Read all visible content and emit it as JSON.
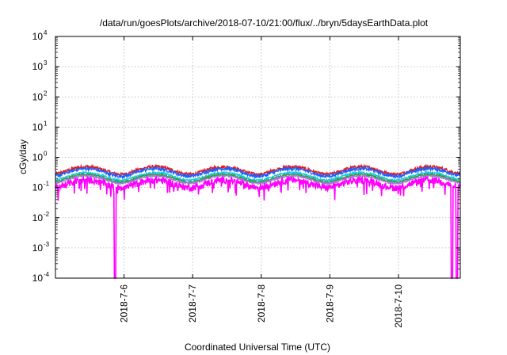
{
  "chart_data": {
    "type": "line",
    "title": "/data/run/goesPlots/archive/2018-07-10/21:00/flux/../bryn/5daysEarthData.plot",
    "xlabel": "Coordinated Universal Time (UTC)",
    "ylabel": "cGy/day",
    "yscale": "log",
    "ylim": [
      0.0001,
      10000
    ],
    "xlim_days": [
      5.0,
      10.9
    ],
    "grid": true,
    "x_ticks": [
      {
        "label": "2018-7-6",
        "day": 6
      },
      {
        "label": "2018-7-7",
        "day": 7
      },
      {
        "label": "2018-7-8",
        "day": 8
      },
      {
        "label": "2018-7-9",
        "day": 9
      },
      {
        "label": "2018-7-10",
        "day": 10
      }
    ],
    "y_ticks": [
      {
        "base": "10",
        "exp": "-4",
        "value": 0.0001
      },
      {
        "base": "10",
        "exp": "-3",
        "value": 0.001
      },
      {
        "base": "10",
        "exp": "-2",
        "value": 0.01
      },
      {
        "base": "10",
        "exp": "-1",
        "value": 0.1
      },
      {
        "base": "10",
        "exp": "0",
        "value": 1
      },
      {
        "base": "10",
        "exp": "1",
        "value": 10
      },
      {
        "base": "10",
        "exp": "2",
        "value": 100
      },
      {
        "base": "10",
        "exp": "3",
        "value": 1000
      },
      {
        "base": "10",
        "exp": "4",
        "value": 10000
      }
    ],
    "series": [
      {
        "color": "#e41a1c",
        "base": 0.38,
        "noise": 0.12
      },
      {
        "color": "#1f5fff",
        "base": 0.33,
        "noise": 0.12
      },
      {
        "color": "#18c8e0",
        "base": 0.24,
        "noise": 0.08
      },
      {
        "color": "#2ca02c",
        "base": 0.21,
        "noise": 0.06
      },
      {
        "color": "#9e7bd6",
        "base": 0.19,
        "noise": 0.06
      },
      {
        "color": "#ff00ff",
        "base": 0.14,
        "noise": 0.25
      }
    ],
    "dropouts_days": [
      5.87,
      10.78,
      10.85
    ]
  }
}
